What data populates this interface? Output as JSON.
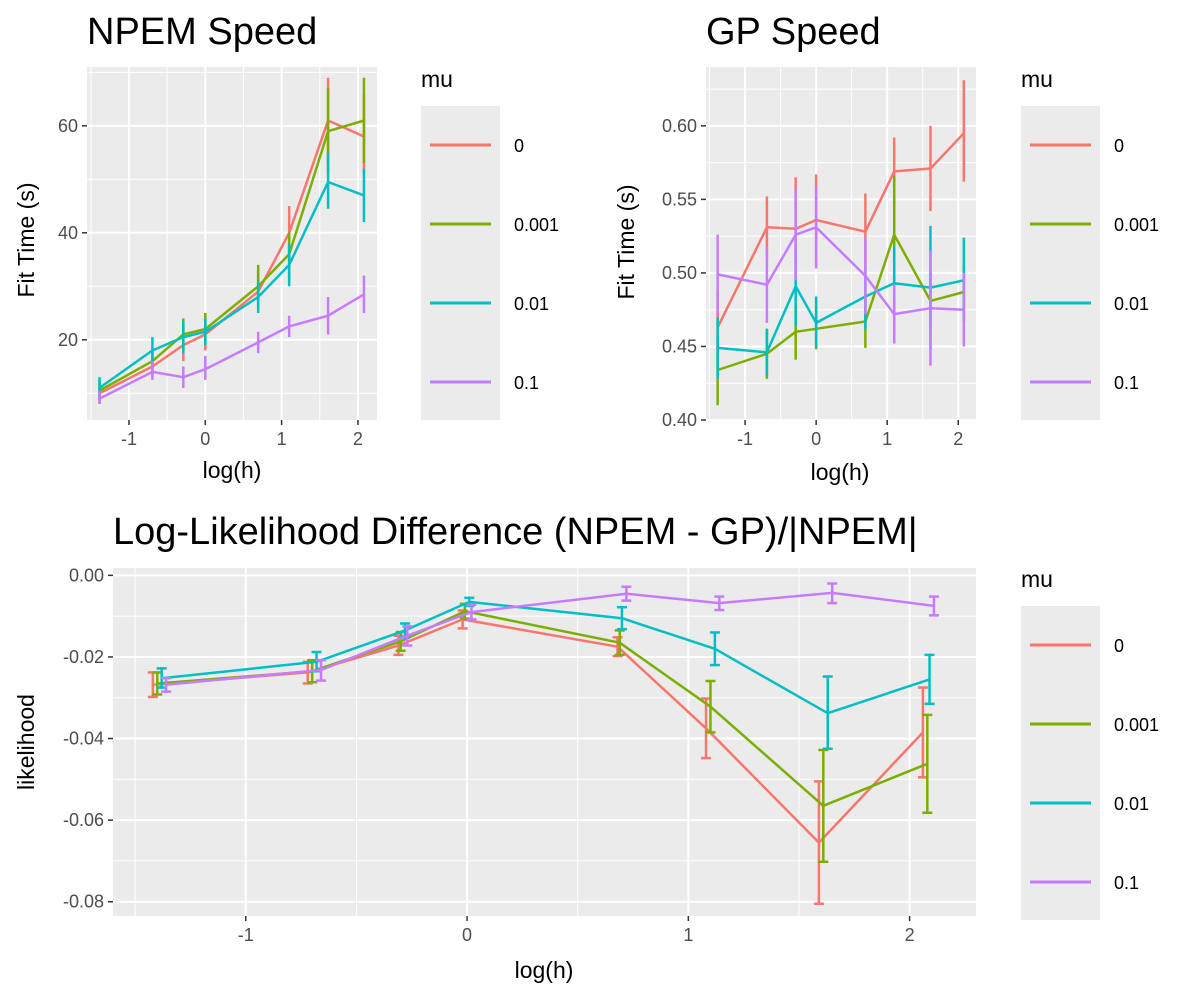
{
  "chart_data": [
    {
      "id": "npem",
      "type": "line",
      "title": "NPEM Speed",
      "xlabel": "log(h)",
      "ylabel": "Fit Time (s)",
      "xlim": [
        -1.55,
        2.25
      ],
      "ylim": [
        5,
        71
      ],
      "xticks": [
        -1,
        0,
        1,
        2
      ],
      "xtick_labels": [
        "-1",
        "0",
        "1",
        "2"
      ],
      "yticks": [
        20,
        40,
        60
      ],
      "ytick_labels": [
        "20",
        "40",
        "60"
      ],
      "error_caps": false,
      "legend_title": "mu",
      "series": [
        {
          "name": "0",
          "color": "#F8766D",
          "x": [
            -1.386,
            -0.693,
            -0.288,
            0.0,
            0.693,
            1.099,
            1.609,
            2.079
          ],
          "y": [
            10,
            15,
            19,
            21,
            29,
            40,
            61,
            58
          ],
          "lo": [
            8,
            13,
            16,
            18,
            26,
            35,
            53,
            51
          ],
          "hi": [
            12,
            17,
            23,
            25,
            33,
            45,
            69,
            66
          ]
        },
        {
          "name": "0.001",
          "color": "#7CAE00",
          "x": [
            -1.386,
            -0.693,
            -0.288,
            0.0,
            0.693,
            1.099,
            1.609,
            2.079
          ],
          "y": [
            10.5,
            16,
            21,
            22,
            30,
            36,
            59,
            61
          ],
          "lo": [
            8.5,
            14,
            18,
            19,
            27,
            31,
            51,
            53
          ],
          "hi": [
            12.5,
            18,
            24,
            25,
            34,
            40,
            67,
            69
          ]
        },
        {
          "name": "0.01",
          "color": "#00BFC4",
          "x": [
            -1.386,
            -0.693,
            -0.288,
            0.0,
            0.693,
            1.099,
            1.609,
            2.079
          ],
          "y": [
            11,
            18,
            20.5,
            21.5,
            28,
            34,
            49.5,
            47
          ],
          "lo": [
            9,
            16,
            17.5,
            19,
            25,
            30,
            44.5,
            42
          ],
          "hi": [
            13,
            20.5,
            23.5,
            24,
            31,
            38,
            55,
            52
          ]
        },
        {
          "name": "0.1",
          "color": "#C77CFF",
          "x": [
            -1.386,
            -0.693,
            -0.288,
            0.0,
            0.693,
            1.099,
            1.609,
            2.079
          ],
          "y": [
            9,
            14,
            13,
            14.5,
            19.5,
            22.5,
            24.5,
            28.5
          ],
          "lo": [
            8,
            12.5,
            11,
            12.5,
            17.5,
            20.5,
            21,
            25
          ],
          "hi": [
            10.5,
            16,
            15,
            17,
            21.5,
            24.5,
            28,
            32
          ]
        }
      ]
    },
    {
      "id": "gp",
      "type": "line",
      "title": "GP Speed",
      "xlabel": "log(h)",
      "ylabel": "Fit Time (s)",
      "xlim": [
        -1.55,
        2.25
      ],
      "ylim": [
        0.4,
        0.64
      ],
      "xticks": [
        -1,
        0,
        1,
        2
      ],
      "xtick_labels": [
        "-1",
        "0",
        "1",
        "2"
      ],
      "yticks": [
        0.4,
        0.45,
        0.5,
        0.55,
        0.6
      ],
      "ytick_labels": [
        "0.40",
        "0.45",
        "0.50",
        "0.55",
        "0.60"
      ],
      "error_caps": false,
      "legend_title": "mu",
      "series": [
        {
          "name": "0",
          "color": "#F8766D",
          "x": [
            -1.386,
            -0.693,
            -0.288,
            0.0,
            0.693,
            1.099,
            1.609,
            2.079
          ],
          "y": [
            0.463,
            0.531,
            0.53,
            0.536,
            0.528,
            0.569,
            0.571,
            0.595
          ],
          "lo": [
            0.44,
            0.51,
            0.495,
            0.505,
            0.503,
            0.545,
            0.542,
            0.562
          ],
          "hi": [
            0.487,
            0.552,
            0.565,
            0.567,
            0.554,
            0.592,
            0.6,
            0.631
          ]
        },
        {
          "name": "0.001",
          "color": "#7CAE00",
          "x": [
            -1.386,
            -0.693,
            -0.288,
            0.0,
            0.693,
            1.099,
            1.609,
            2.079
          ],
          "y": [
            0.434,
            0.445,
            0.46,
            0.462,
            0.467,
            0.526,
            0.481,
            0.487
          ],
          "lo": [
            0.41,
            0.428,
            0.441,
            0.448,
            0.449,
            0.486,
            0.462,
            0.467
          ],
          "hi": [
            0.457,
            0.462,
            0.478,
            0.478,
            0.486,
            0.566,
            0.5,
            0.505
          ]
        },
        {
          "name": "0.01",
          "color": "#00BFC4",
          "x": [
            -1.386,
            -0.693,
            -0.288,
            0.0,
            0.693,
            1.099,
            1.609,
            2.079
          ],
          "y": [
            0.449,
            0.446,
            0.491,
            0.466,
            0.484,
            0.493,
            0.49,
            0.495
          ],
          "lo": [
            0.428,
            0.43,
            0.464,
            0.449,
            0.462,
            0.468,
            0.448,
            0.467
          ],
          "hi": [
            0.47,
            0.462,
            0.518,
            0.484,
            0.505,
            0.518,
            0.532,
            0.524
          ]
        },
        {
          "name": "0.1",
          "color": "#C77CFF",
          "x": [
            -1.386,
            -0.693,
            -0.288,
            0.0,
            0.693,
            1.099,
            1.609,
            2.079
          ],
          "y": [
            0.499,
            0.492,
            0.526,
            0.531,
            0.498,
            0.472,
            0.476,
            0.475
          ],
          "lo": [
            0.472,
            0.466,
            0.495,
            0.503,
            0.472,
            0.452,
            0.437,
            0.45
          ],
          "hi": [
            0.526,
            0.518,
            0.557,
            0.559,
            0.524,
            0.492,
            0.515,
            0.5
          ]
        }
      ]
    },
    {
      "id": "ll",
      "type": "line",
      "title": "Log-Likelihood Difference (NPEM - GP)/|NPEM|",
      "xlabel": "log(h)",
      "ylabel": "likelihood",
      "xlim": [
        -1.6,
        2.3
      ],
      "ylim": [
        -0.0835,
        0.0018
      ],
      "xticks": [
        -1,
        0,
        1,
        2
      ],
      "xtick_labels": [
        "-1",
        "0",
        "1",
        "2"
      ],
      "yticks": [
        0.0,
        -0.02,
        -0.04,
        -0.06,
        -0.08
      ],
      "ytick_labels": [
        "0.00",
        "-0.02",
        "-0.04",
        "-0.06",
        "-0.08"
      ],
      "error_caps": true,
      "legend_title": "mu",
      "series": [
        {
          "name": "0",
          "color": "#F8766D",
          "x": [
            -1.42,
            -0.72,
            -0.31,
            -0.02,
            0.68,
            1.08,
            1.59,
            2.06
          ],
          "y": [
            -0.0268,
            -0.0238,
            -0.0172,
            -0.0108,
            -0.0175,
            -0.0375,
            -0.0655,
            -0.0385
          ],
          "lo": [
            -0.0298,
            -0.0265,
            -0.0195,
            -0.013,
            -0.0198,
            -0.0448,
            -0.0805,
            -0.0495
          ],
          "hi": [
            -0.0238,
            -0.0212,
            -0.0148,
            -0.0086,
            -0.0152,
            -0.0302,
            -0.0505,
            -0.0275
          ]
        },
        {
          "name": "0.001",
          "color": "#7CAE00",
          "x": [
            -1.4,
            -0.7,
            -0.3,
            -0.01,
            0.69,
            1.1,
            1.61,
            2.08
          ],
          "y": [
            -0.0265,
            -0.0235,
            -0.0162,
            -0.0088,
            -0.0165,
            -0.0322,
            -0.0565,
            -0.0462
          ],
          "lo": [
            -0.0292,
            -0.0262,
            -0.0185,
            -0.0106,
            -0.0195,
            -0.0385,
            -0.0702,
            -0.0582
          ],
          "hi": [
            -0.0238,
            -0.0208,
            -0.0139,
            -0.007,
            -0.0135,
            -0.0259,
            -0.0428,
            -0.0342
          ]
        },
        {
          "name": "0.01",
          "color": "#00BFC4",
          "x": [
            -1.38,
            -0.68,
            -0.28,
            0.01,
            0.7,
            1.12,
            1.63,
            2.09
          ],
          "y": [
            -0.0252,
            -0.0212,
            -0.0135,
            -0.0065,
            -0.0105,
            -0.018,
            -0.0338,
            -0.0255
          ],
          "lo": [
            -0.0275,
            -0.0235,
            -0.0152,
            -0.0075,
            -0.0132,
            -0.022,
            -0.0425,
            -0.0315
          ],
          "hi": [
            -0.0228,
            -0.0188,
            -0.0118,
            -0.0055,
            -0.0078,
            -0.014,
            -0.0248,
            -0.0195
          ]
        },
        {
          "name": "0.1",
          "color": "#C77CFF",
          "x": [
            -1.36,
            -0.66,
            -0.27,
            0.02,
            0.72,
            1.14,
            1.65,
            2.11
          ],
          "y": [
            -0.0268,
            -0.0232,
            -0.0148,
            -0.009,
            -0.0045,
            -0.0068,
            -0.0043,
            -0.0075
          ],
          "lo": [
            -0.0285,
            -0.0258,
            -0.0172,
            -0.0108,
            -0.0062,
            -0.0085,
            -0.0068,
            -0.0098
          ],
          "hi": [
            -0.0252,
            -0.0208,
            -0.0125,
            -0.0072,
            -0.0028,
            -0.0052,
            -0.002,
            -0.0052
          ]
        }
      ]
    }
  ]
}
